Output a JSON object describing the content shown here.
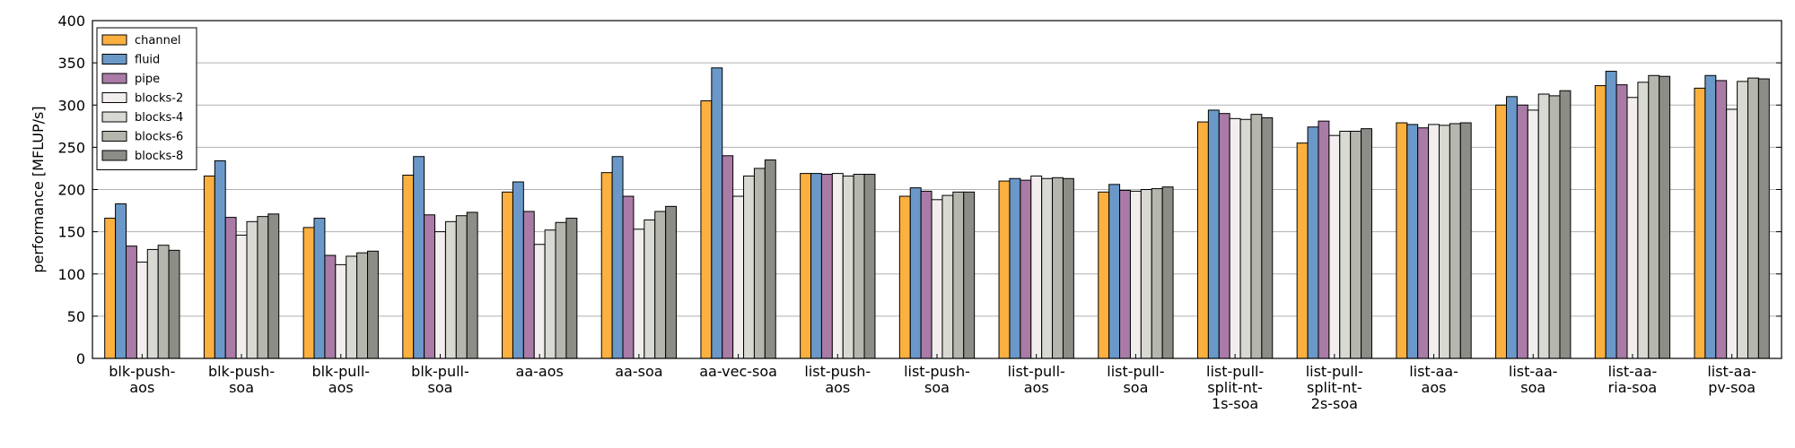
{
  "chart_data": {
    "type": "bar",
    "title": "",
    "xlabel": "",
    "ylabel": "performance [MFLUP/s]",
    "ylim": [
      0,
      400
    ],
    "yticks": [
      0,
      50,
      100,
      150,
      200,
      250,
      300,
      350,
      400
    ],
    "grid": "y",
    "legend_position": "top-left",
    "categories": [
      [
        "blk-push-",
        "aos"
      ],
      [
        "blk-push-",
        "soa"
      ],
      [
        "blk-pull-",
        "aos"
      ],
      [
        "blk-pull-",
        "soa"
      ],
      [
        "aa-aos"
      ],
      [
        "aa-soa"
      ],
      [
        "aa-vec-soa"
      ],
      [
        "list-push-",
        "aos"
      ],
      [
        "list-push-",
        "soa"
      ],
      [
        "list-pull-",
        "aos"
      ],
      [
        "list-pull-",
        "soa"
      ],
      [
        "list-pull-",
        "split-nt-",
        "1s-soa"
      ],
      [
        "list-pull-",
        "split-nt-",
        "2s-soa"
      ],
      [
        "list-aa-",
        "aos"
      ],
      [
        "list-aa-",
        "soa"
      ],
      [
        "list-aa-",
        "ria-soa"
      ],
      [
        "list-aa-",
        "pv-soa"
      ]
    ],
    "series": [
      {
        "name": "channel",
        "color": "#fbb040",
        "values": [
          166,
          216,
          155,
          217,
          197,
          220,
          305,
          219,
          192,
          210,
          197,
          280,
          255,
          279,
          300,
          323,
          320
        ]
      },
      {
        "name": "fluid",
        "color": "#6a98c9",
        "values": [
          183,
          234,
          166,
          239,
          209,
          239,
          344,
          219,
          202,
          213,
          206,
          294,
          274,
          277,
          310,
          340,
          335
        ]
      },
      {
        "name": "pipe",
        "color": "#a97ba6",
        "values": [
          133,
          167,
          122,
          170,
          174,
          192,
          240,
          218,
          198,
          211,
          199,
          290,
          281,
          273,
          300,
          324,
          329
        ]
      },
      {
        "name": "blocks-2",
        "color": "#f2eeee",
        "values": [
          114,
          146,
          111,
          150,
          135,
          153,
          192,
          219,
          188,
          216,
          198,
          284,
          264,
          277,
          294,
          309,
          295
        ]
      },
      {
        "name": "blocks-4",
        "color": "#d8d9d2",
        "values": [
          129,
          162,
          121,
          162,
          152,
          164,
          216,
          216,
          193,
          213,
          200,
          283,
          269,
          276,
          313,
          327,
          328
        ]
      },
      {
        "name": "blocks-6",
        "color": "#b5b6ae",
        "values": [
          134,
          168,
          125,
          169,
          161,
          174,
          225,
          218,
          197,
          214,
          201,
          289,
          269,
          278,
          311,
          335,
          332
        ]
      },
      {
        "name": "blocks-8",
        "color": "#8b8d86",
        "values": [
          128,
          171,
          127,
          173,
          166,
          180,
          235,
          218,
          197,
          213,
          203,
          285,
          272,
          279,
          317,
          334,
          331
        ]
      }
    ]
  }
}
